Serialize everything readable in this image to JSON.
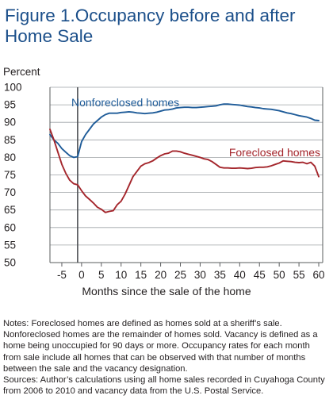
{
  "figure": {
    "title": "Figure 1.Occupancy before and after Home Sale",
    "notes": "Notes: Foreclosed homes are defined as homes sold at a sheriff’s sale. Nonforeclosed homes are the remainder of homes sold. Vacancy is defined as a home being unoccupied for 90 days or more. Occupancy rates for each month from sale include all homes that can be observed with that number of months between the sale and the vacancy designation.",
    "sources": "Sources: Author’s calculations using all home sales recorded in Cuyahoga County from 2006 to 2010 and vacancy data from the U.S. Postal Service."
  },
  "chart_data": {
    "type": "line",
    "title": "Figure 1.Occupancy before and after Home Sale",
    "xlabel": "Months since the sale of the home",
    "ylabel": "Percent",
    "xlim": [
      -8,
      61
    ],
    "ylim": [
      50,
      100
    ],
    "xticks": [
      -5,
      0,
      5,
      10,
      15,
      20,
      25,
      30,
      35,
      40,
      45,
      50,
      55,
      60
    ],
    "yticks": [
      50,
      55,
      60,
      65,
      70,
      75,
      80,
      85,
      90,
      95,
      100
    ],
    "grid": true,
    "reference_line_x": -1,
    "colors": {
      "nonforeclosed": "#1f5c99",
      "foreclosed": "#a4262c",
      "grid": "#9ea2a6",
      "axis": "#5a5c5e",
      "reference": "#4d4f53"
    },
    "series": [
      {
        "name": "Nonforeclosed homes",
        "color": "#1f5c99",
        "x": [
          -8,
          -7,
          -6,
          -5,
          -4,
          -3,
          -2,
          -1,
          0,
          1,
          2,
          3,
          4,
          5,
          6,
          7,
          8,
          9,
          10,
          11,
          12,
          13,
          14,
          15,
          16,
          17,
          18,
          19,
          20,
          21,
          22,
          23,
          24,
          25,
          26,
          27,
          28,
          29,
          30,
          31,
          32,
          33,
          34,
          35,
          36,
          37,
          38,
          39,
          40,
          41,
          42,
          43,
          44,
          45,
          46,
          47,
          48,
          49,
          50,
          51,
          52,
          53,
          54,
          55,
          56,
          57,
          58,
          59,
          60
        ],
        "values": [
          86.5,
          85,
          84,
          82.5,
          81.5,
          80.5,
          80,
          80.2,
          84.5,
          86.5,
          88,
          89.5,
          90.5,
          91.5,
          92.2,
          92.6,
          92.6,
          92.6,
          92.8,
          92.9,
          93,
          92.9,
          92.7,
          92.6,
          92.5,
          92.6,
          92.7,
          92.9,
          93.2,
          93.5,
          93.6,
          93.8,
          94.1,
          94.2,
          94.3,
          94.3,
          94.2,
          94.2,
          94.3,
          94.4,
          94.5,
          94.6,
          94.7,
          95,
          95.2,
          95.2,
          95.1,
          95,
          94.9,
          94.7,
          94.5,
          94.4,
          94.2,
          94.1,
          93.9,
          93.8,
          93.7,
          93.5,
          93.3,
          93,
          92.7,
          92.5,
          92.2,
          91.9,
          91.7,
          91.5,
          91.1,
          90.6,
          90.5
        ]
      },
      {
        "name": "Foreclosed homes",
        "color": "#a4262c",
        "x": [
          -8,
          -7,
          -6,
          -5,
          -4,
          -3,
          -2,
          -1,
          0,
          1,
          2,
          3,
          4,
          5,
          6,
          7,
          8,
          9,
          10,
          11,
          12,
          13,
          14,
          15,
          16,
          17,
          18,
          19,
          20,
          21,
          22,
          23,
          24,
          25,
          26,
          27,
          28,
          29,
          30,
          31,
          32,
          33,
          34,
          35,
          36,
          37,
          38,
          39,
          40,
          41,
          42,
          43,
          44,
          45,
          46,
          47,
          48,
          49,
          50,
          51,
          52,
          53,
          54,
          55,
          56,
          57,
          58,
          59,
          60
        ],
        "values": [
          88,
          85,
          81.5,
          78,
          75.5,
          73.5,
          72.5,
          72.2,
          70.5,
          69,
          68,
          67,
          65.8,
          65.2,
          64.3,
          64.6,
          64.8,
          66.5,
          67.5,
          69.5,
          72,
          74.5,
          76,
          77.5,
          78.2,
          78.5,
          79,
          79.8,
          80.5,
          81,
          81.2,
          81.8,
          81.8,
          81.6,
          81.2,
          80.9,
          80.6,
          80.3,
          80,
          79.6,
          79.4,
          78.8,
          78,
          77.2,
          77,
          77,
          76.9,
          76.9,
          77,
          76.9,
          76.8,
          76.9,
          77.1,
          77.2,
          77.2,
          77.3,
          77.6,
          78,
          78.4,
          79,
          78.9,
          78.8,
          78.6,
          78.5,
          78.6,
          78.2,
          78.6,
          77.5,
          74.5
        ]
      }
    ],
    "annotations": [
      {
        "text": "Nonforeclosed homes",
        "series": "Nonforeclosed homes"
      },
      {
        "text": "Foreclosed homes",
        "series": "Foreclosed homes"
      }
    ]
  }
}
